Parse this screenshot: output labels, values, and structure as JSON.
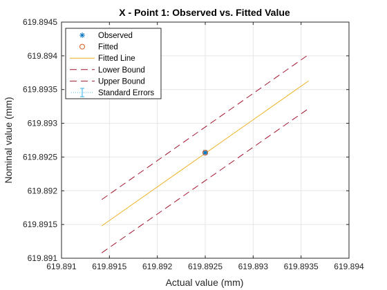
{
  "chart_data": {
    "type": "line",
    "title": "X - Point 1: Observed vs. Fitted Value",
    "xlabel": "Actual value (mm)",
    "ylabel": "Nominal value (mm)",
    "xlim": [
      619.891,
      619.894
    ],
    "ylim": [
      619.891,
      619.8945
    ],
    "xticks": [
      "619.891",
      "619.8915",
      "619.892",
      "619.8925",
      "619.893",
      "619.8935",
      "619.894"
    ],
    "yticks": [
      "619.891",
      "619.8915",
      "619.892",
      "619.8925",
      "619.893",
      "619.8935",
      "619.894",
      "619.8945"
    ],
    "grid": true,
    "legend_position": "top-left",
    "colors": {
      "observed": "#0072BD",
      "fitted": "#D95319",
      "fitted_line": "#EDB120",
      "bounds": "#A2142F",
      "errors": "#4DBEEE",
      "grid": "#E6E6E6",
      "axes": "#262626"
    },
    "series": [
      {
        "name": "Observed",
        "marker": "asterisk",
        "x": [
          619.8925
        ],
        "y": [
          619.892565
        ]
      },
      {
        "name": "Fitted",
        "marker": "circle",
        "x": [
          619.8925
        ],
        "y": [
          619.892565
        ]
      },
      {
        "name": "Fitted Line",
        "style": "solid",
        "x": [
          619.89142,
          619.89358
        ],
        "y": [
          619.89148,
          619.89363
        ]
      },
      {
        "name": "Lower Bound",
        "style": "dashed",
        "x": [
          619.89142,
          619.89358
        ],
        "y": [
          619.89108,
          619.89322
        ]
      },
      {
        "name": "Upper Bound",
        "style": "dashed",
        "x": [
          619.89142,
          619.89358
        ],
        "y": [
          619.89187,
          619.89402
        ]
      },
      {
        "name": "Standard Errors",
        "style": "errorbar",
        "x": [
          619.8925
        ],
        "y": [
          619.892565
        ],
        "xerr": 1.5e-05,
        "yerr": 1.7e-05
      }
    ]
  }
}
